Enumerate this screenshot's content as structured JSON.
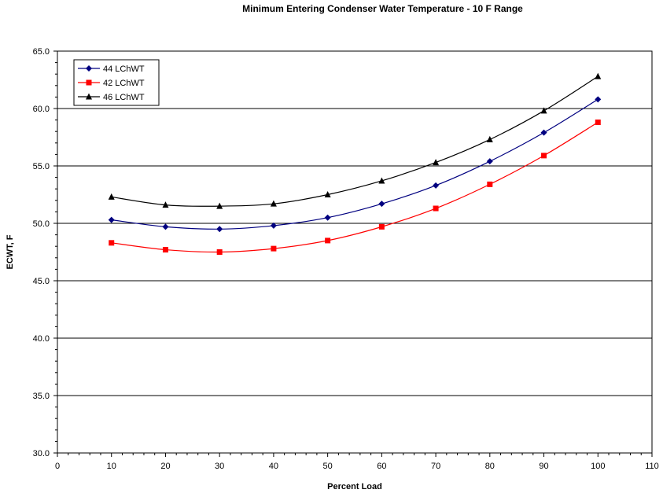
{
  "chart_data": {
    "type": "line",
    "title": "Minimum Entering Condenser Water Temperature - 10 F Range",
    "xlabel": "Percent Load",
    "ylabel": "ECWT, F",
    "xlim": [
      0,
      110
    ],
    "ylim": [
      30,
      65
    ],
    "x_ticks": [
      "0",
      "10",
      "20",
      "30",
      "40",
      "50",
      "60",
      "70",
      "80",
      "90",
      "100",
      "110"
    ],
    "y_ticks": [
      "30.0",
      "35.0",
      "40.0",
      "45.0",
      "50.0",
      "55.0",
      "60.0",
      "65.0"
    ],
    "grid": "horizontal",
    "legend_position": "top-left",
    "x": [
      10,
      20,
      30,
      40,
      50,
      60,
      70,
      80,
      90,
      100
    ],
    "series": [
      {
        "name": "44 LChWT",
        "color": "#000080",
        "marker": "diamond",
        "values": [
          50.3,
          49.7,
          49.5,
          49.8,
          50.5,
          51.7,
          53.3,
          55.4,
          57.9,
          60.8
        ]
      },
      {
        "name": "42 LChWT",
        "color": "#ff0000",
        "marker": "square",
        "values": [
          48.3,
          47.7,
          47.5,
          47.8,
          48.5,
          49.7,
          51.3,
          53.4,
          55.9,
          58.8
        ]
      },
      {
        "name": "46 LChWT",
        "color": "#000000",
        "marker": "triangle",
        "values": [
          52.3,
          51.6,
          51.5,
          51.7,
          52.5,
          53.7,
          55.3,
          57.3,
          59.8,
          62.8
        ]
      }
    ]
  }
}
